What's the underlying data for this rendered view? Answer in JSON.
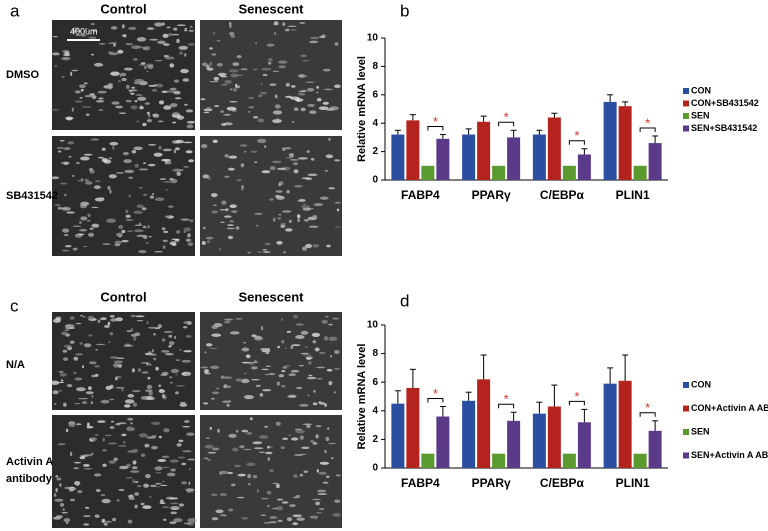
{
  "panels": [
    {
      "label": "a",
      "columns": [
        "Control",
        "Senescent"
      ],
      "rows": [
        [
          "DMSO"
        ],
        [
          "SB431542"
        ]
      ],
      "scale_bar": "400um"
    },
    {
      "label": "c",
      "columns": [
        "Control",
        "Senescent"
      ],
      "rows": [
        [
          "N/A"
        ],
        [
          "Activin A",
          "antibody"
        ]
      ]
    }
  ],
  "chart_data": [
    {
      "type": "bar",
      "panel_label": "b",
      "y_label": "Relative mRNA level",
      "categories": [
        "FABP4",
        "PPARγ",
        "C/EBPα",
        "PLIN1"
      ],
      "ylim": [
        0,
        10
      ],
      "yticks": [
        0,
        2,
        4,
        6,
        8,
        10
      ],
      "legend": "right",
      "series": [
        {
          "name": "CON",
          "color": "#2a4fa0",
          "values": [
            3.2,
            3.2,
            3.2,
            5.5
          ],
          "errors": [
            0.3,
            0.4,
            0.3,
            0.5
          ]
        },
        {
          "name": "CON+SB431542",
          "color": "#b5231f",
          "values": [
            4.2,
            4.1,
            4.4,
            5.2
          ],
          "errors": [
            0.4,
            0.4,
            0.3,
            0.3
          ]
        },
        {
          "name": "SEN",
          "color": "#5a9a2e",
          "values": [
            1,
            1,
            1,
            1
          ]
        },
        {
          "name": "SEN+SB431542",
          "color": "#5b3a8a",
          "values": [
            2.9,
            3.0,
            1.8,
            2.6
          ],
          "errors": [
            0.3,
            0.5,
            0.4,
            0.5
          ]
        }
      ],
      "significance_labels": [
        "*",
        "*",
        "*",
        "*"
      ]
    },
    {
      "type": "bar",
      "panel_label": "d",
      "y_label": "Relative mRNA level",
      "categories": [
        "FABP4",
        "PPARγ",
        "C/EBPα",
        "PLIN1"
      ],
      "ylim": [
        0,
        10
      ],
      "yticks": [
        0,
        2,
        4,
        6,
        8,
        10
      ],
      "legend": "right",
      "series": [
        {
          "name": "CON",
          "color": "#2a4fa0",
          "values": [
            4.5,
            4.7,
            3.8,
            5.9
          ],
          "errors": [
            0.9,
            0.6,
            0.8,
            1.1
          ]
        },
        {
          "name": "CON+Activin A AB",
          "color": "#b5231f",
          "values": [
            5.6,
            6.2,
            4.3,
            6.1
          ],
          "errors": [
            1.3,
            1.7,
            1.5,
            1.8
          ]
        },
        {
          "name": "SEN",
          "color": "#5a9a2e",
          "values": [
            1,
            1,
            1,
            1
          ]
        },
        {
          "name": "SEN+Activin A AB",
          "color": "#5b3a8a",
          "values": [
            3.6,
            3.3,
            3.2,
            2.6
          ],
          "errors": [
            0.7,
            0.6,
            0.9,
            0.7
          ]
        }
      ],
      "significance_labels": [
        "*",
        "*",
        "*",
        "*"
      ]
    }
  ]
}
